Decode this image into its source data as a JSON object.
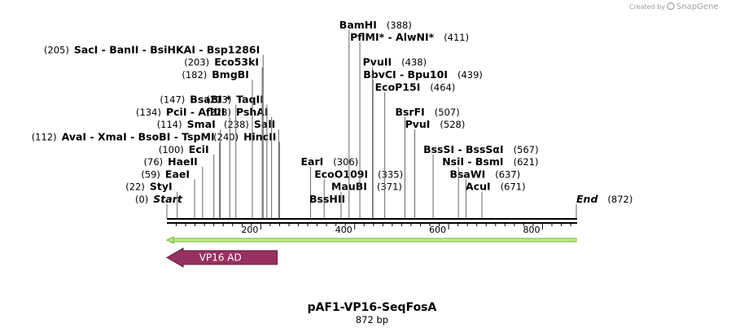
{
  "credit": {
    "created_by": "Created by",
    "brand": "SnapGene"
  },
  "plasmid": {
    "name": "pAF1-VP16-SeqFosA",
    "length_label": "872 bp",
    "length": 872
  },
  "axis": {
    "ticks": [
      200,
      400,
      600,
      800
    ]
  },
  "colors": {
    "feature_fill": "#96305f",
    "orf_fill": "#c4ec8c",
    "orf_stroke": "#73b03a"
  },
  "rows": [
    [
      {
        "pos": 0,
        "name": "Start",
        "end": true
      },
      {
        "pos": 872,
        "name": "End",
        "end": true
      }
    ],
    [
      {
        "pos": 22,
        "name": "StyI"
      },
      {
        "pos": 371,
        "name": "MauBI"
      },
      {
        "pos": 671,
        "name": "AcuI"
      }
    ],
    [
      {
        "pos": 59,
        "name": "EaeI"
      },
      {
        "pos": 335,
        "name": "EcoO109I"
      },
      {
        "pos": 637,
        "name": "BsaWI"
      }
    ],
    [
      {
        "pos": 76,
        "name": "HaeII"
      },
      {
        "pos": 306,
        "name": "EarI"
      },
      {
        "pos": 621,
        "name": "NsiI",
        "group": [
          "NsiI",
          "BsmI"
        ]
      }
    ],
    [
      {
        "pos": 100,
        "name": "EciI"
      },
      {
        "pos": 567,
        "name": "BssSI",
        "group": [
          "BssSI",
          "BssSαI"
        ]
      }
    ],
    [
      {
        "pos": 112,
        "name": "AvaI",
        "group": [
          "AvaI",
          "XmaI",
          "BsoBI",
          "TspMI"
        ]
      },
      {
        "pos": 240,
        "name": "HincII"
      }
    ],
    [
      {
        "pos": 114,
        "name": "SmaI"
      },
      {
        "pos": 238,
        "name": "SalI"
      },
      {
        "pos": 528,
        "name": "PvuI"
      }
    ],
    [
      {
        "pos": 134,
        "name": "PciI",
        "group": [
          "PciI",
          "AflIII"
        ]
      },
      {
        "pos": 223,
        "name": "PshAI"
      },
      {
        "pos": 507,
        "name": "BsrFI"
      }
    ],
    [
      {
        "pos": 147,
        "name": "BsaBI",
        "star": true
      },
      {
        "pos": 213,
        "name": "TaqII"
      }
    ],
    [
      {
        "pos": 464,
        "name": "EcoP15I"
      }
    ],
    [
      {
        "pos": 182,
        "name": "BmgBI"
      },
      {
        "pos": 439,
        "name": "BbvCI",
        "group": [
          "BbvCI",
          "Bpu10I"
        ]
      }
    ],
    [
      {
        "pos": 203,
        "name": "Eco53kI"
      },
      {
        "pos": 438,
        "name": "PvuII"
      }
    ],
    [
      {
        "pos": 205,
        "name": "SacI",
        "group": [
          "SacI",
          "BanII",
          "BsiHKAI",
          "Bsp1286I"
        ]
      }
    ],
    [
      {
        "pos": 411,
        "name": "PflMI",
        "group": [
          "PflMI*",
          "AlwNI*"
        ]
      }
    ],
    [
      {
        "pos": 388,
        "name": "BamHI"
      }
    ]
  ],
  "extra_labels": [
    {
      "name": "BssHII",
      "pos": 371
    }
  ],
  "features": [
    {
      "name": "VP16 AD",
      "start": 0,
      "end": 235,
      "direction": "reverse"
    }
  ],
  "orf": {
    "start": 0,
    "end": 872,
    "direction": "reverse"
  }
}
